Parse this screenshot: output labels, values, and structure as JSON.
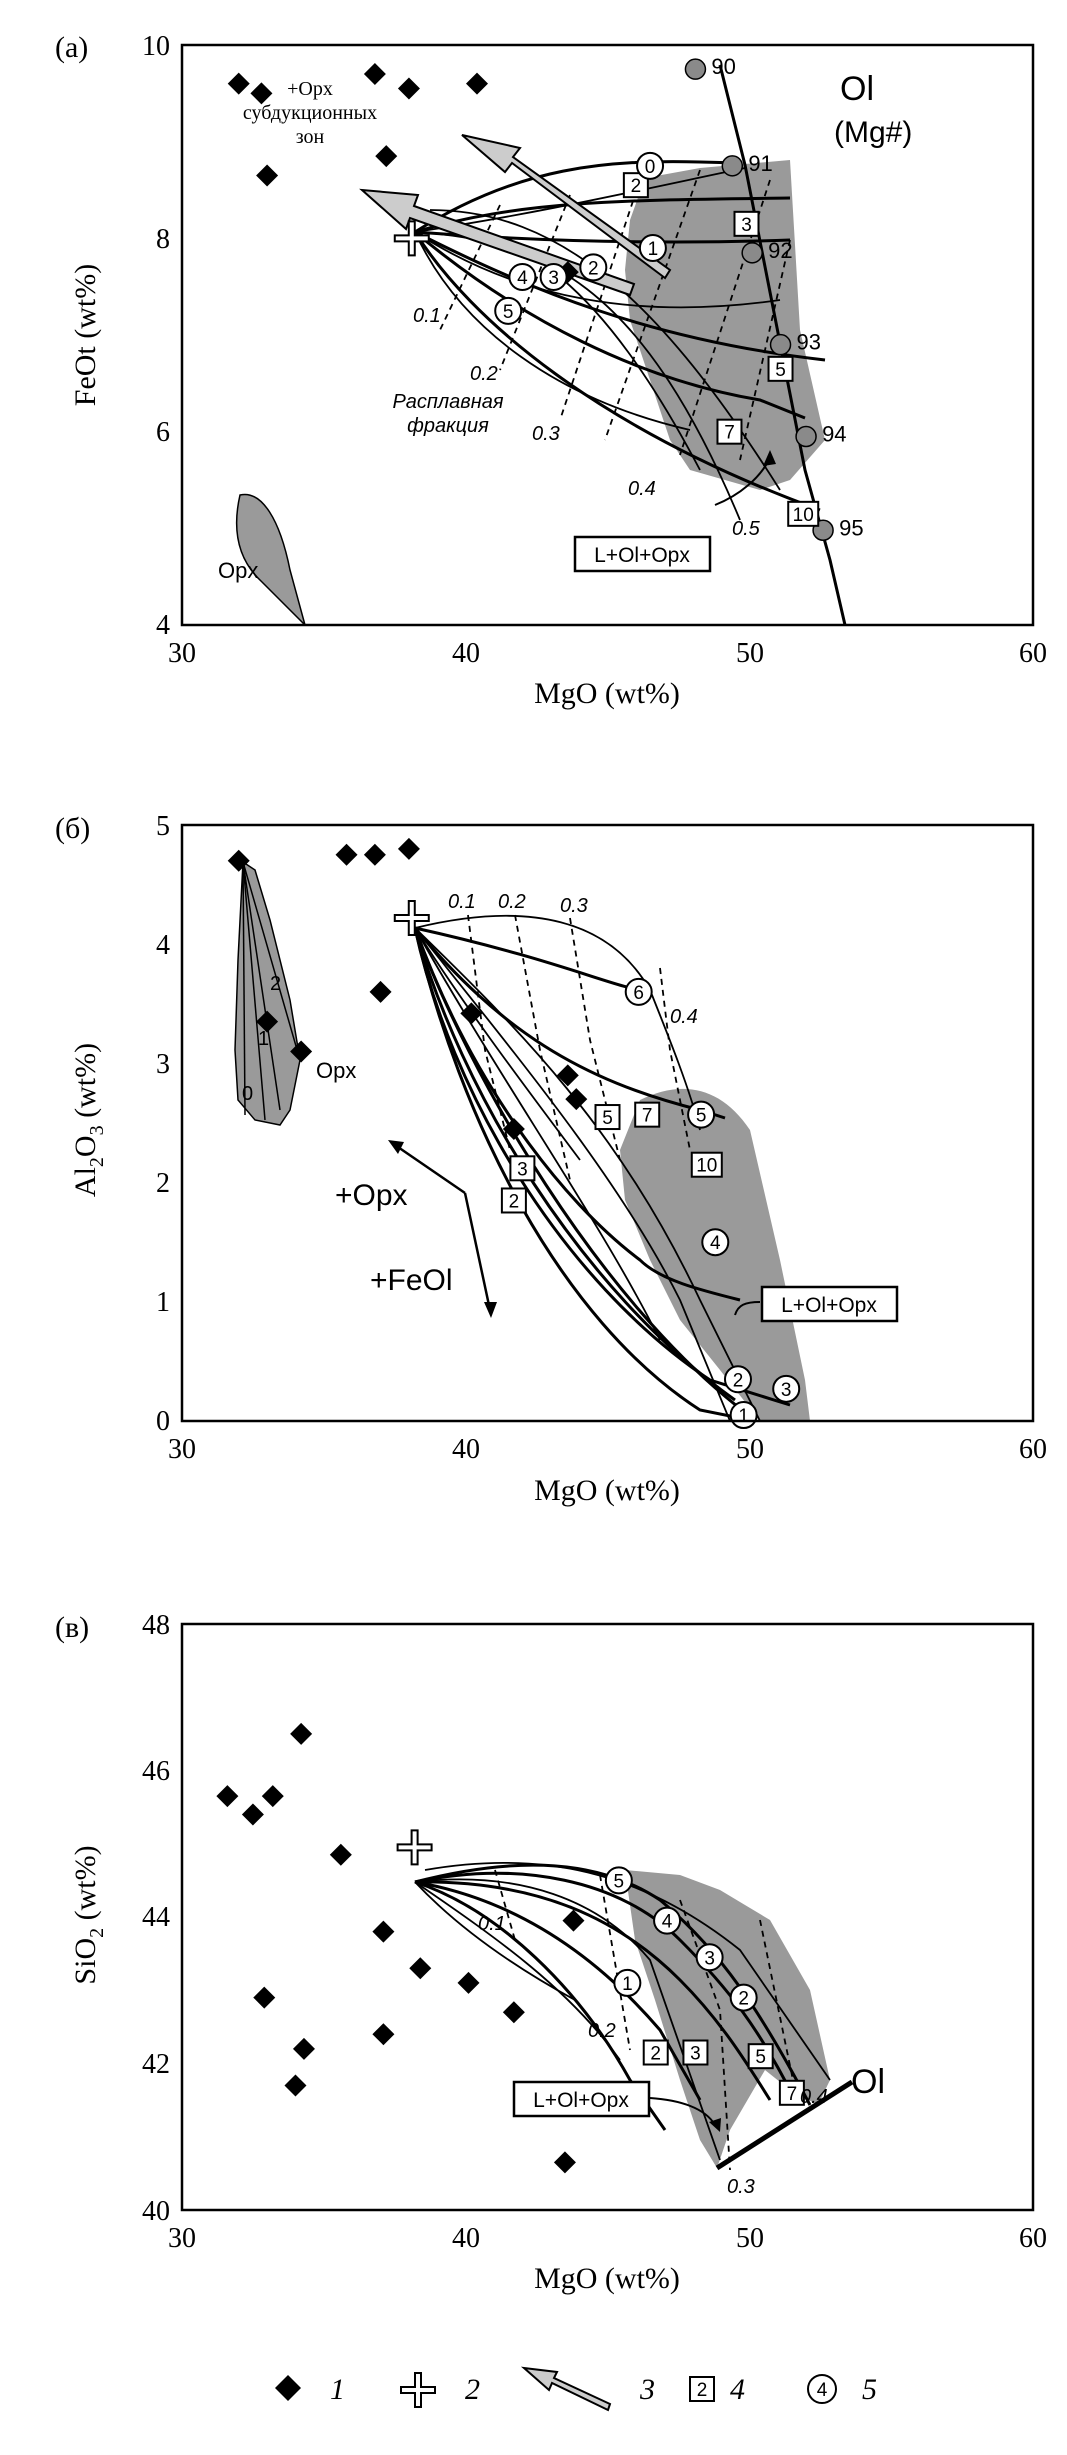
{
  "colors": {
    "field": "#9a9a9a",
    "ink": "#000000",
    "arrow_fill": "#cccccc"
  },
  "chart_data": [
    {
      "type": "scatter",
      "panel_label": "(а)",
      "xlabel": "MgO (wt%)",
      "ylabel": "FeOt (wt%)",
      "xlim": [
        30,
        60
      ],
      "ylim": [
        4,
        10
      ],
      "xticks": [
        "30",
        "40",
        "50",
        "60"
      ],
      "yticks": [
        "4",
        "6",
        "8",
        "10"
      ],
      "diamonds": [
        [
          32,
          9.6
        ],
        [
          32.8,
          9.5
        ],
        [
          33,
          8.65
        ],
        [
          36.8,
          9.7
        ],
        [
          37.2,
          8.85
        ],
        [
          38,
          9.55
        ],
        [
          40.4,
          9.6
        ],
        [
          43.6,
          7.65
        ]
      ],
      "start_point": [
        38.1,
        8.0
      ],
      "ol_line": {
        "points": [
          [
            48.1,
            9.75
          ],
          [
            49.4,
            8.75
          ],
          [
            50.1,
            7.85
          ],
          [
            51.1,
            6.9
          ],
          [
            52,
            5.95
          ],
          [
            52.6,
            4.98
          ]
        ],
        "labels": [
          "90",
          "91",
          "92",
          "93",
          "94",
          "95"
        ],
        "title": "Ol",
        "subtitle": "(Mg#)"
      },
      "squares": [
        {
          "label": "2",
          "x": 46,
          "y": 8.55
        },
        {
          "label": "3",
          "x": 49.9,
          "y": 8.15
        },
        {
          "label": "5",
          "x": 51.1,
          "y": 6.65
        },
        {
          "label": "7",
          "x": 49.3,
          "y": 6.0
        },
        {
          "label": "10",
          "x": 51.9,
          "y": 5.15
        }
      ],
      "circles": [
        {
          "label": "0",
          "x": 46.5,
          "y": 8.75
        },
        {
          "label": "1",
          "x": 46.6,
          "y": 7.9
        },
        {
          "label": "2",
          "x": 44.5,
          "y": 7.7
        },
        {
          "label": "3",
          "x": 43.1,
          "y": 7.6
        },
        {
          "label": "4",
          "x": 42,
          "y": 7.6
        },
        {
          "label": "5",
          "x": 41.5,
          "y": 7.25
        }
      ],
      "fraction_labels": [
        "0.1",
        "0.2",
        "0.3",
        "0.4",
        "0.5"
      ],
      "annotations": {
        "subduction": "+Opx\nсубдукционных\nзон",
        "melt_fraction": "Расплавная\nфракция",
        "opx": "Opx",
        "assemblage": "L+Ol+Opx"
      }
    },
    {
      "type": "scatter",
      "panel_label": "(б)",
      "xlabel": "MgO (wt%)",
      "ylabel": "Al2O3 (wt%)",
      "xlim": [
        30,
        60
      ],
      "ylim": [
        0,
        5
      ],
      "xticks": [
        "30",
        "40",
        "50",
        "60"
      ],
      "yticks": [
        "0",
        "1",
        "2",
        "3",
        "4",
        "5"
      ],
      "diamonds": [
        [
          32,
          4.7
        ],
        [
          33,
          3.35
        ],
        [
          34.2,
          3.1
        ],
        [
          35.8,
          4.75
        ],
        [
          36.8,
          4.75
        ],
        [
          38,
          4.8
        ],
        [
          37,
          3.6
        ],
        [
          40.2,
          3.42
        ],
        [
          41.7,
          2.45
        ],
        [
          43.6,
          2.9
        ],
        [
          43.9,
          2.7
        ]
      ],
      "start_point": [
        38.1,
        4.22
      ],
      "squares": [
        {
          "label": "2",
          "x": 41.7,
          "y": 1.85
        },
        {
          "label": "3",
          "x": 42,
          "y": 2.12
        },
        {
          "label": "5",
          "x": 45,
          "y": 2.55
        },
        {
          "label": "7",
          "x": 46.4,
          "y": 2.57
        },
        {
          "label": "10",
          "x": 48.5,
          "y": 2.15
        }
      ],
      "circles": [
        {
          "label": "6",
          "x": 46.1,
          "y": 3.6
        },
        {
          "label": "5",
          "x": 48.3,
          "y": 2.57
        },
        {
          "label": "4",
          "x": 48.8,
          "y": 1.5
        },
        {
          "label": "2",
          "x": 49.6,
          "y": 0.35
        },
        {
          "label": "3",
          "x": 51.3,
          "y": 0.27
        },
        {
          "label": "1",
          "x": 49.8,
          "y": 0.05
        }
      ],
      "fraction_labels": [
        "0.1",
        "0.2",
        "0.3",
        "0.4"
      ],
      "opx_numbers": [
        "0",
        "1",
        "2"
      ],
      "annotations": {
        "opx": "Opx",
        "plus_opx": "+Opx",
        "plus_feol": "+FeOl",
        "assemblage": "L+Ol+Opx"
      }
    },
    {
      "type": "scatter",
      "panel_label": "(в)",
      "xlabel": "MgO (wt%)",
      "ylabel": "SiO2 (wt%)",
      "xlim": [
        30,
        60
      ],
      "ylim": [
        40,
        48
      ],
      "xticks": [
        "30",
        "40",
        "50",
        "60"
      ],
      "yticks": [
        "40",
        "42",
        "44",
        "46",
        "48"
      ],
      "diamonds": [
        [
          31.6,
          45.65
        ],
        [
          32.5,
          45.4
        ],
        [
          33.2,
          45.65
        ],
        [
          34.2,
          46.5
        ],
        [
          32.9,
          42.9
        ],
        [
          34,
          41.7
        ],
        [
          34.3,
          42.2
        ],
        [
          35.6,
          44.85
        ],
        [
          37.1,
          43.8
        ],
        [
          37.1,
          42.4
        ],
        [
          38.4,
          43.3
        ],
        [
          40.1,
          43.1
        ],
        [
          41.7,
          42.7
        ],
        [
          43.8,
          43.95
        ],
        [
          43.5,
          40.65
        ]
      ],
      "start_point": [
        38.2,
        44.95
      ],
      "squares": [
        {
          "label": "2",
          "x": 46.7,
          "y": 42.15
        },
        {
          "label": "3",
          "x": 48.1,
          "y": 42.15
        },
        {
          "label": "5",
          "x": 50.4,
          "y": 42.1
        },
        {
          "label": "7",
          "x": 51.5,
          "y": 41.6
        }
      ],
      "circles": [
        {
          "label": "5",
          "x": 45.4,
          "y": 44.5
        },
        {
          "label": "4",
          "x": 47.1,
          "y": 43.95
        },
        {
          "label": "3",
          "x": 48.6,
          "y": 43.45
        },
        {
          "label": "2",
          "x": 49.8,
          "y": 42.9
        },
        {
          "label": "1",
          "x": 45.7,
          "y": 43.1
        }
      ],
      "fraction_labels": [
        "0.1",
        "0.2",
        "0.3",
        "0.4"
      ],
      "annotations": {
        "ol": "Ol",
        "assemblage": "L+Ol+Opx"
      }
    }
  ],
  "legend": [
    {
      "symbol": "diamond-icon",
      "label": "1"
    },
    {
      "symbol": "cross-icon",
      "label": "2"
    },
    {
      "symbol": "arrow-icon",
      "label": "3"
    },
    {
      "symbol": "square-icon",
      "label": "4",
      "inner": "2"
    },
    {
      "symbol": "circle-icon",
      "label": "5",
      "inner": "4"
    }
  ]
}
